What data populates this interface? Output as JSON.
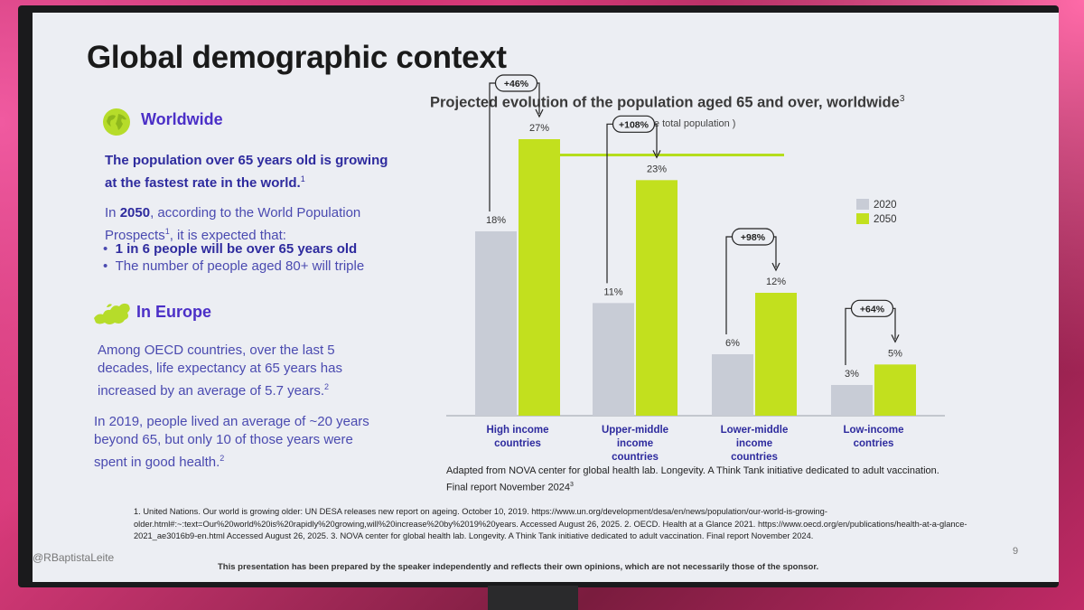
{
  "slide": {
    "title": "Global demographic context",
    "page_number": "9",
    "handle": "@RBaptistaLeite",
    "disclaimer": "This presentation has been prepared by the speaker independently and reflects their own opinions, which are not necessarily those of the sponsor."
  },
  "worldwide": {
    "heading": "Worldwide",
    "lead": "The population over 65 years old is growing at the fastest rate in the world.",
    "lead_ref": "1",
    "intro_pre": "In ",
    "intro_year": "2050",
    "intro_post": ", according to the World Population Prospects",
    "intro_ref": "1",
    "intro_tail": ", it is expected that:",
    "bullet_1_pre": "1 in 6 people will be over ",
    "bullet_1_num": "65",
    "bullet_1_post": " years old",
    "bullet_2": "The number of people aged 80+ will triple"
  },
  "europe": {
    "heading": "In Europe",
    "para_1": "Among OECD countries, over the last 5 decades, life expectancy at 65 years has increased by an average of 5.7 years.",
    "para_1_ref": "2",
    "para_2": "In 2019, people lived an average of ~20 years beyond 65, but only 10 of those years were spent in good health.",
    "para_2_ref": "2"
  },
  "chart_data": {
    "type": "bar",
    "title": "Projected evolution of the population aged 65 and over, worldwide",
    "title_ref": "3",
    "subtitle": "(% of the total population )",
    "categories": [
      [
        "High income",
        "countries"
      ],
      [
        "Upper-middle",
        "income",
        "countries"
      ],
      [
        "Lower-middle",
        "income",
        "countries"
      ],
      [
        "Low-income",
        "contries"
      ]
    ],
    "series": [
      {
        "name": "2020",
        "color": "#c8ccd6",
        "values": [
          18,
          11,
          6,
          3
        ],
        "labels": [
          "18%",
          "11%",
          "6%",
          "3%"
        ]
      },
      {
        "name": "2050",
        "color": "#c2e01e",
        "values": [
          27,
          23,
          12,
          5
        ],
        "labels": [
          "27%",
          "23%",
          "12%",
          "5%"
        ]
      }
    ],
    "growth_labels": [
      "+46%",
      "+108%",
      "+98%",
      "+64%"
    ],
    "ylim": [
      0,
      30
    ],
    "legend_position": "top-right",
    "grid": false
  },
  "source": {
    "text": "Adapted from NOVA center for global health lab. Longevity. A Think Tank initiative dedicated to adult vaccination.  Final report November 2024",
    "ref": "3"
  },
  "footnotes": "1. United Nations. Our world is growing older: UN DESA releases new report on ageing. October 10, 2019. https://www.un.org/development/desa/en/news/population/our-world-is-growing-older.html#:~:text=Our%20world%20is%20rapidly%20growing,will%20increase%20by%2019%20years. Accessed August 26, 2025. 2. OECD. Health at a Glance 2021. https://www.oecd.org/en/publications/health-at-a-glance-2021_ae3016b9-en.html Accessed August 26, 2025. 3. NOVA center for global health lab. Longevity. A Think Tank initiative dedicated to adult vaccination. Final report November 2024."
}
